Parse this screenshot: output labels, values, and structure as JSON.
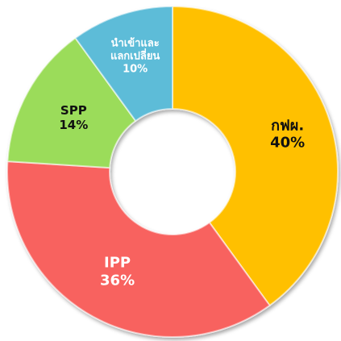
{
  "chart_data": {
    "type": "donut",
    "categories": [
      "กฟผ.",
      "IPP",
      "SPP",
      "นำเข้าและแลกเปลี่ยน"
    ],
    "values": [
      40,
      36,
      14,
      10
    ],
    "value_labels": [
      "40%",
      "36%",
      "14%",
      "10%"
    ],
    "colors": [
      "#ffc000",
      "#f8625f",
      "#9bdc5a",
      "#5dbcd8"
    ],
    "label_colors": [
      "#111111",
      "#ffffff",
      "#111111",
      "#ffffff"
    ]
  }
}
